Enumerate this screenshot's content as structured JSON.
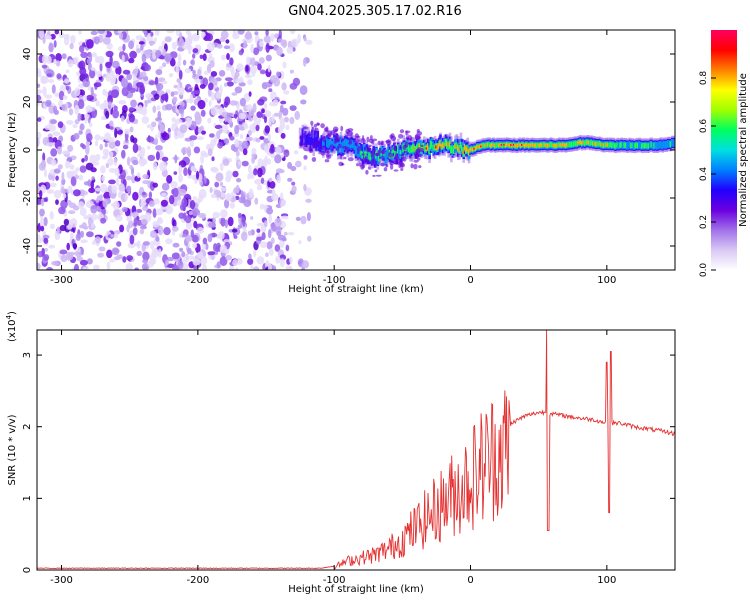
{
  "title": "GN04.2025.305.17.02.R16",
  "chart_data": [
    {
      "type": "heatmap",
      "name": "spectrogram",
      "xlabel": "Height of straight line (km)",
      "ylabel": "Frequency (Hz)",
      "xlim": [
        -318,
        150
      ],
      "ylim": [
        -50,
        50
      ],
      "xticks": [
        -300,
        -200,
        -100,
        0,
        100
      ],
      "yticks": [
        -40,
        -20,
        0,
        20,
        40
      ],
      "colorbar": {
        "label": "Normalized spectral amplitude",
        "range": [
          0,
          1
        ],
        "ticks": [
          0.0,
          0.2,
          0.4,
          0.6,
          0.8
        ],
        "tick_labels": [
          "0.0",
          "0.2",
          "0.4",
          "0.6",
          "0.8"
        ],
        "colormap": [
          "#ffffff",
          "#d9c8f5",
          "#a070e8",
          "#6a00e0",
          "#2000ff",
          "#0080ff",
          "#00e0e0",
          "#00ff60",
          "#a0ff00",
          "#ffff00",
          "#ff8000",
          "#ff0000",
          "#ff0060"
        ]
      },
      "noise_region_x": [
        -318,
        -118
      ],
      "signal_trace": {
        "x": [
          -125,
          -110,
          -100,
          -90,
          -80,
          -70,
          -60,
          -50,
          -40,
          -30,
          -20,
          -10,
          0,
          10,
          20,
          30,
          40,
          50,
          60,
          70,
          80,
          90,
          100,
          110,
          120,
          130,
          140,
          150
        ],
        "freq": [
          5,
          3,
          2,
          2,
          -1,
          -3,
          -2,
          0,
          1,
          1,
          2,
          1,
          0,
          2,
          2,
          2,
          2,
          2,
          2,
          2,
          3,
          3,
          2,
          2,
          2,
          2,
          2,
          3
        ],
        "amplitude": [
          0.3,
          0.35,
          0.5,
          0.45,
          0.55,
          0.5,
          0.6,
          0.55,
          0.7,
          0.85,
          0.8,
          0.75,
          0.85,
          0.8,
          0.8,
          0.9,
          0.9,
          0.8,
          0.8,
          0.8,
          0.8,
          0.75,
          0.75,
          0.6,
          0.55,
          0.55,
          0.5,
          0.5
        ]
      }
    },
    {
      "type": "line",
      "name": "snr",
      "xlabel": "Height of straight line (km)",
      "ylabel": "SNR (10 * v/v)",
      "y_scale_label": "(x10",
      "y_scale_exp": "4",
      "xlim": [
        -318,
        150
      ],
      "ylim": [
        0,
        3.35
      ],
      "xticks": [
        -300,
        -200,
        -100,
        0,
        100
      ],
      "yticks": [
        0,
        1,
        2,
        3
      ],
      "color": "#e53030",
      "envelope": {
        "x": [
          -318,
          -110,
          -100,
          -90,
          -80,
          -70,
          -60,
          -50,
          -40,
          -30,
          -20,
          -10,
          0,
          10,
          20,
          30,
          40,
          50,
          55,
          60,
          70,
          80,
          90,
          100,
          110,
          120,
          130,
          140,
          150
        ],
        "y": [
          0.02,
          0.02,
          0.05,
          0.15,
          0.2,
          0.25,
          0.35,
          0.5,
          0.7,
          0.9,
          1.1,
          1.3,
          1.5,
          1.75,
          1.95,
          2.05,
          2.15,
          2.2,
          2.2,
          2.18,
          2.15,
          2.12,
          2.1,
          2.05,
          2.05,
          2.0,
          1.97,
          1.94,
          1.9
        ]
      },
      "spikes": [
        {
          "x": 56,
          "y": 3.35
        },
        {
          "x": 57,
          "y": 0.55
        },
        {
          "x": 100,
          "y": 2.9
        },
        {
          "x": 102,
          "y": 0.8
        },
        {
          "x": 103,
          "y": 3.05
        }
      ]
    }
  ]
}
